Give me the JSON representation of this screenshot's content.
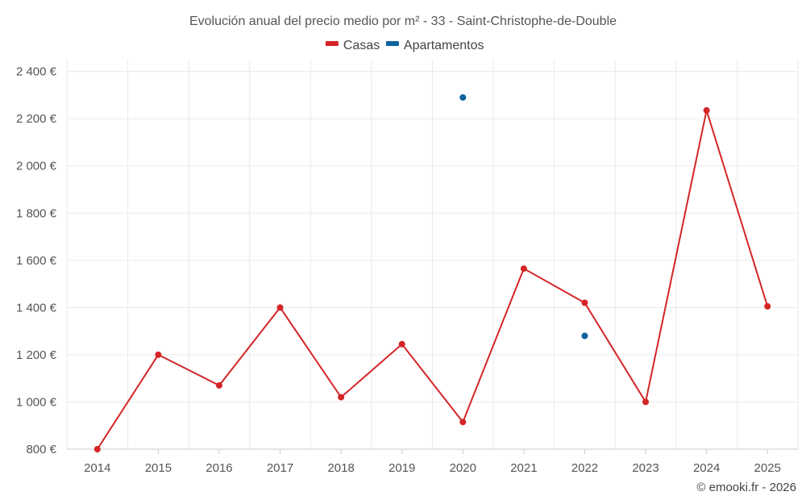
{
  "chart_data": {
    "type": "line",
    "title": "Evolución anual del precio medio por m² - 33 - Saint-Christophe-de-Double",
    "categories": [
      "2014",
      "2015",
      "2016",
      "2017",
      "2018",
      "2019",
      "2020",
      "2021",
      "2022",
      "2023",
      "2024",
      "2025"
    ],
    "y_ticks": [
      800,
      1000,
      1200,
      1400,
      1600,
      1800,
      2000,
      2200,
      2400
    ],
    "y_tick_labels": [
      "800 €",
      "1 000 €",
      "1 200 €",
      "1 400 €",
      "1 600 €",
      "1 800 €",
      "2 000 €",
      "2 200 €",
      "2 400 €"
    ],
    "ylim": [
      800,
      2450
    ],
    "legend_position": "top-center",
    "grid": true,
    "series": [
      {
        "name": "Casas",
        "color": "#d42527",
        "values": [
          800,
          1200,
          1070,
          1400,
          1020,
          1245,
          915,
          1565,
          1420,
          1000,
          2235,
          1405
        ]
      },
      {
        "name": "Apartamentos",
        "color": "#0b639f",
        "values": [
          null,
          null,
          null,
          null,
          null,
          null,
          2290,
          null,
          1280,
          null,
          null,
          null
        ]
      }
    ]
  },
  "footer": "© emooki.fr - 2026"
}
